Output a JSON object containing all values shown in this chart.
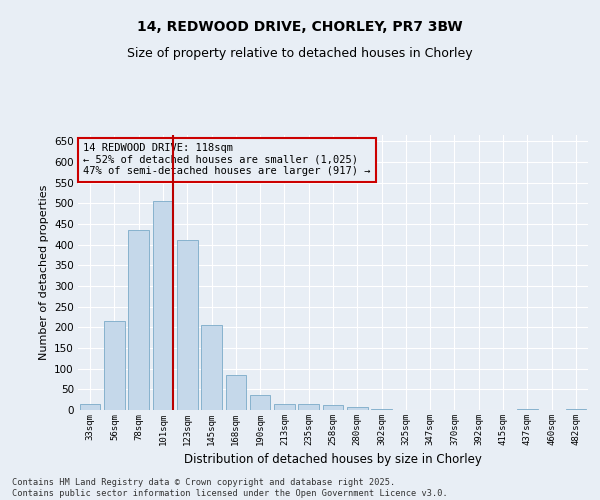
{
  "title1": "14, REDWOOD DRIVE, CHORLEY, PR7 3BW",
  "title2": "Size of property relative to detached houses in Chorley",
  "xlabel": "Distribution of detached houses by size in Chorley",
  "ylabel": "Number of detached properties",
  "categories": [
    "33sqm",
    "56sqm",
    "78sqm",
    "101sqm",
    "123sqm",
    "145sqm",
    "168sqm",
    "190sqm",
    "213sqm",
    "235sqm",
    "258sqm",
    "280sqm",
    "302sqm",
    "325sqm",
    "347sqm",
    "370sqm",
    "392sqm",
    "415sqm",
    "437sqm",
    "460sqm",
    "482sqm"
  ],
  "values": [
    15,
    215,
    435,
    505,
    410,
    205,
    85,
    37,
    15,
    15,
    11,
    8,
    3,
    1,
    1,
    0,
    0,
    0,
    3,
    0,
    3
  ],
  "bar_color": "#c5d8ea",
  "bar_edge_color": "#7aaac8",
  "vline_color": "#bb0000",
  "annotation_title": "14 REDWOOD DRIVE: 118sqm",
  "annotation_line1": "← 52% of detached houses are smaller (1,025)",
  "annotation_line2": "47% of semi-detached houses are larger (917) →",
  "annotation_box_edgecolor": "#cc0000",
  "background_color": "#e8eef5",
  "grid_color": "#ffffff",
  "ylim": [
    0,
    665
  ],
  "yticks": [
    0,
    50,
    100,
    150,
    200,
    250,
    300,
    350,
    400,
    450,
    500,
    550,
    600,
    650
  ],
  "footnote1": "Contains HM Land Registry data © Crown copyright and database right 2025.",
  "footnote2": "Contains public sector information licensed under the Open Government Licence v3.0.",
  "figsize": [
    6.0,
    5.0
  ],
  "dpi": 100
}
